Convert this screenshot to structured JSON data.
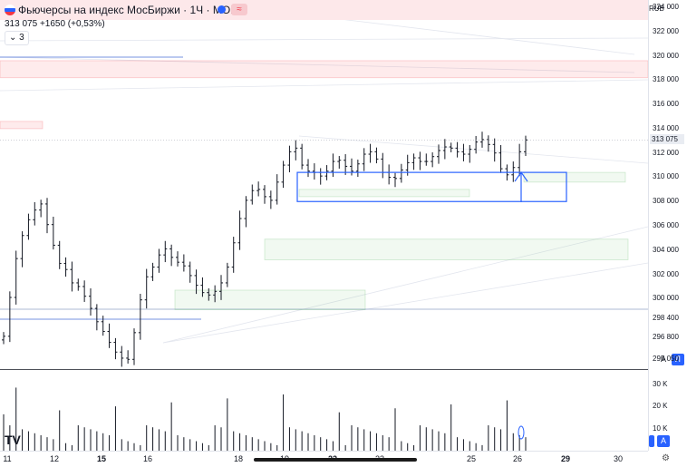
{
  "header": {
    "title": "Фьючерсы на индекс МосБиржи · 1Ч · MOEX",
    "last_price": "313 075",
    "change": "+1650 (+0,53%)",
    "indicators_toggle": "3",
    "wave_icon_glyph": "≈"
  },
  "price_axis": {
    "currency": "RUB",
    "labels": [
      "324 000",
      "322 000",
      "320 000",
      "318 000",
      "316 000",
      "314 000",
      "312 000",
      "310 000",
      "308 000",
      "306 000",
      "304 000",
      "302 000",
      "300 000",
      "298 400",
      "296 800",
      "295 050"
    ],
    "current_tag": "313 075"
  },
  "volume_axis": {
    "labels": [
      "30 K",
      "20 K",
      "10 K"
    ]
  },
  "time_axis": {
    "labels": [
      "11",
      "12",
      "15",
      "16",
      "18",
      "19",
      "22",
      "23",
      "25",
      "26",
      "29",
      "30"
    ],
    "bold": [
      "15",
      "22",
      "29"
    ]
  },
  "buttons": {
    "auto": "A",
    "log": "Л"
  },
  "colors": {
    "up_zone": "#4caf50",
    "down_zone": "#f23645",
    "box": "#2962ff",
    "candle": "#131722"
  },
  "chart_data": {
    "type": "candlestick",
    "ylim": [
      294200,
      324600
    ],
    "bars_per_day": 14,
    "x_ticks": [
      "11",
      "12",
      "15",
      "16",
      "18",
      "19",
      "22",
      "23",
      "25",
      "26",
      "29",
      "30"
    ],
    "close_path": [
      296900,
      300100,
      303300,
      305200,
      306500,
      307300,
      307800,
      306100,
      304400,
      302900,
      302400,
      301300,
      301000,
      300200,
      299200,
      298100,
      297300,
      296400,
      295600,
      295100,
      295000,
      297200,
      299900,
      301800,
      302600,
      303600,
      304100,
      303400,
      303000,
      302700,
      301900,
      301100,
      300500,
      300300,
      300600,
      301300,
      302600,
      304600,
      306600,
      308100,
      308900,
      309000,
      308400,
      308100,
      309600,
      311000,
      312100,
      312400,
      311000,
      310500,
      310400,
      310100,
      310500,
      311300,
      311400,
      310900,
      310500,
      311100,
      311900,
      312100,
      311500,
      310400,
      310000,
      309900,
      310600,
      311200,
      311600,
      311300,
      311300,
      311700,
      312200,
      312500,
      312400,
      312100,
      311900,
      312300,
      312900,
      313100,
      312700,
      312000,
      310700,
      310200,
      310800,
      312100,
      313075
    ],
    "zones": [
      {
        "type": "supply",
        "low": 318200,
        "high": 319600
      },
      {
        "type": "supply",
        "low": 314000,
        "high": 314600
      },
      {
        "type": "demand",
        "low": 309600,
        "high": 310400
      },
      {
        "type": "demand",
        "low": 308400,
        "high": 309000
      },
      {
        "type": "demand",
        "low": 303200,
        "high": 304900
      },
      {
        "type": "demand",
        "low": 299100,
        "high": 300700
      }
    ],
    "box": {
      "low": 308000,
      "high": 310400
    },
    "volume_ylim": [
      0,
      37000
    ]
  }
}
